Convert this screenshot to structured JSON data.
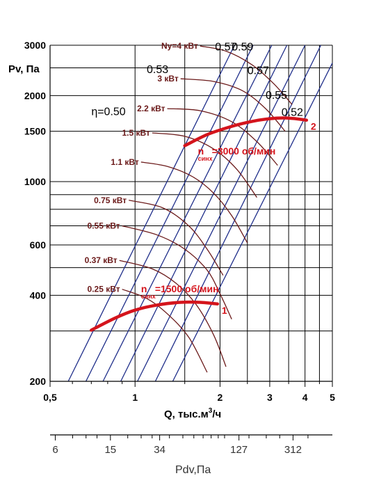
{
  "chart_data": {
    "type": "line",
    "title": "",
    "xlabel": "Q, тыс.м",
    "xlabel_sup": "3",
    "xlabel_suffix": "/ч",
    "ylabel": "Pv, Па",
    "x_scale": "log",
    "y_scale": "log",
    "xlim": [
      0.5,
      5
    ],
    "ylim": [
      200,
      3000
    ],
    "x_ticks": [
      {
        "value": 0.5,
        "label": "0,5"
      },
      {
        "value": 1,
        "label": "1"
      },
      {
        "value": 2,
        "label": "2"
      },
      {
        "value": 3,
        "label": "3"
      },
      {
        "value": 4,
        "label": "4"
      },
      {
        "value": 5,
        "label": "5"
      }
    ],
    "x_minor_ticks": [
      0.6,
      0.7,
      0.8,
      0.9,
      1.5,
      2.5,
      3.5,
      4.5
    ],
    "y_ticks": [
      {
        "value": 200,
        "label": "200"
      },
      {
        "value": 400,
        "label": "400"
      },
      {
        "value": 600,
        "label": "600"
      },
      {
        "value": 1000,
        "label": "1000"
      },
      {
        "value": 1500,
        "label": "1500"
      },
      {
        "value": 2000,
        "label": "2000"
      },
      {
        "value": 3000,
        "label": "3000"
      }
    ],
    "y_gridlines": [
      200,
      300,
      400,
      500,
      600,
      700,
      800,
      900,
      1000,
      1500,
      2000,
      2500,
      3000
    ],
    "x_gridlines": [
      0.5,
      1,
      1.5,
      2,
      2.5,
      3,
      3.5,
      4,
      4.5,
      5
    ],
    "grid": true,
    "secondary_axis": {
      "label": "Pdv,Па",
      "ticks": [
        {
          "value": 6,
          "label": "6"
        },
        {
          "value": 15,
          "label": "15"
        },
        {
          "value": 34,
          "label": "34"
        },
        {
          "value": 127,
          "label": "127"
        },
        {
          "value": 312,
          "label": "312"
        }
      ],
      "minor_ticks": [
        8,
        10,
        12,
        20,
        25,
        30,
        40,
        50,
        60,
        70,
        80,
        90,
        100,
        150,
        200,
        250,
        400
      ],
      "range": [
        5.5,
        600
      ]
    },
    "series": [
      {
        "name": "1",
        "speed_label": "n",
        "speed_sub": "синх",
        "speed_value": "=1500 об/мин",
        "color": "#d4141c",
        "x": [
          0.7,
          0.85,
          1.0,
          1.2,
          1.45,
          1.7,
          1.96
        ],
        "y": [
          302,
          333,
          355,
          370,
          378,
          378,
          373
        ]
      },
      {
        "name": "2",
        "speed_label": "n",
        "speed_sub": "синх",
        "speed_value": "=3000 об/мин",
        "color": "#d4141c",
        "x": [
          1.5,
          1.8,
          2.2,
          2.6,
          3.0,
          3.4,
          3.8,
          4.05
        ],
        "y": [
          1335,
          1460,
          1560,
          1625,
          1660,
          1670,
          1655,
          1640
        ]
      }
    ],
    "efficiency_lines": {
      "color": "#1f2e8a",
      "lines": [
        {
          "label": "η=0.50",
          "x": [
            0.58,
            2.25
          ],
          "y": [
            200,
            3000
          ]
        },
        {
          "label": "0.53",
          "x": [
            0.67,
            2.62
          ],
          "y": [
            200,
            3000
          ]
        },
        {
          "label": "0.57",
          "x": [
            0.77,
            3.05
          ],
          "y": [
            200,
            3000
          ]
        },
        {
          "label": "0.59",
          "x": [
            0.89,
            3.45
          ],
          "y": [
            200,
            3000
          ]
        },
        {
          "label": "0.57",
          "x": [
            1.02,
            4.0
          ],
          "y": [
            200,
            3000
          ]
        },
        {
          "label": "0.55",
          "x": [
            1.18,
            4.55
          ],
          "y": [
            200,
            3000
          ]
        },
        {
          "label": "0.52",
          "x": [
            1.36,
            5.0
          ],
          "y": [
            200,
            2600
          ]
        }
      ]
    },
    "power_curves": {
      "color": "#6b1a1a",
      "curves": [
        {
          "label": "0.25 кВт",
          "x": [
            0.9,
            1.1,
            1.3,
            1.55,
            1.8
          ],
          "y": [
            420,
            390,
            345,
            285,
            215
          ]
        },
        {
          "label": "0.37 кВт",
          "x": [
            0.88,
            1.15,
            1.4,
            1.65,
            1.9,
            2.1
          ],
          "y": [
            530,
            495,
            440,
            370,
            290,
            225
          ]
        },
        {
          "label": "0.55 кВт",
          "x": [
            0.9,
            1.2,
            1.5,
            1.8,
            2.0,
            2.2
          ],
          "y": [
            700,
            650,
            580,
            490,
            405,
            330
          ]
        },
        {
          "label": "0.75 кВт",
          "x": [
            0.95,
            1.25,
            1.55,
            1.8,
            2.05
          ],
          "y": [
            860,
            810,
            700,
            580,
            470
          ]
        },
        {
          "label": "1.1 кВт",
          "x": [
            1.05,
            1.3,
            1.6,
            1.9,
            2.2,
            2.5
          ],
          "y": [
            1170,
            1130,
            1040,
            910,
            760,
            610
          ]
        },
        {
          "label": "1.5 кВт",
          "x": [
            1.15,
            1.5,
            1.9,
            2.3,
            2.7
          ],
          "y": [
            1480,
            1440,
            1300,
            1100,
            880
          ]
        },
        {
          "label": "2.2 кВт",
          "x": [
            1.3,
            1.7,
            2.2,
            2.7,
            3.2
          ],
          "y": [
            1800,
            1770,
            1620,
            1380,
            1140
          ]
        },
        {
          "label": "3 кВт",
          "x": [
            1.45,
            1.9,
            2.4,
            2.9,
            3.4
          ],
          "y": [
            2290,
            2240,
            2080,
            1800,
            1500
          ]
        },
        {
          "label": "Ny=4 кВт",
          "x": [
            1.7,
            2.1,
            2.6,
            3.1,
            3.6
          ],
          "y": [
            2980,
            2860,
            2560,
            2200,
            1860
          ]
        }
      ]
    }
  }
}
